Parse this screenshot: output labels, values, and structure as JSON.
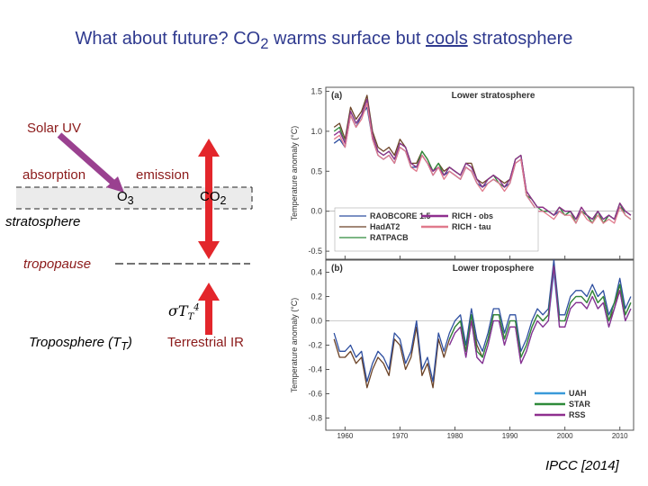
{
  "slide": {
    "title_pre": "What about future? CO",
    "title_sub": "2",
    "title_mid": " warms surface but ",
    "title_underlined": "cools",
    "title_post": " stratosphere",
    "solar_uv": "Solar UV",
    "absorption": "absorption",
    "emission": "emission",
    "o3": "O",
    "o3_sub": "3",
    "co2": "CO",
    "co2_sub": "2",
    "stratosphere": "stratosphere",
    "tropopause": "tropopause",
    "troposphere_pre": "Troposphere (T",
    "troposphere_sub": "T",
    "troposphere_post": ")",
    "sigma": "σ",
    "sigma_T": "T",
    "sigma_sub": "T",
    "sigma_sup": "4",
    "terrestrial_ir": "Terrestrial IR",
    "citation": "IPCC [2014]",
    "colors": {
      "title": "#2f3a8f",
      "label": "#8b1a1a",
      "arrow": "#e3262b",
      "uv_arrow": "#9a4190"
    }
  },
  "chart_data": [
    {
      "type": "line",
      "panel_label": "(a)",
      "title": "Lower stratosphere",
      "ylabel": "Temperature anomaly (°C)",
      "ylim": [
        -0.6,
        1.55
      ],
      "yticks": [
        -0.5,
        0.0,
        0.5,
        1.0,
        1.5
      ],
      "ytick_labels": [
        "-0.5",
        "0.0",
        "0.5",
        "1.0",
        "1.5"
      ],
      "x": [
        1958,
        1959,
        1960,
        1961,
        1962,
        1963,
        1964,
        1965,
        1966,
        1967,
        1968,
        1969,
        1970,
        1971,
        1972,
        1973,
        1974,
        1975,
        1976,
        1977,
        1978,
        1979,
        1980,
        1981,
        1982,
        1983,
        1984,
        1985,
        1986,
        1987,
        1988,
        1989,
        1990,
        1991,
        1992,
        1993,
        1994,
        1995,
        1996,
        1997,
        1998,
        1999,
        2000,
        2001,
        2002,
        2003,
        2004,
        2005,
        2006,
        2007,
        2008,
        2009,
        2010,
        2011,
        2012
      ],
      "legend_placement": "bottom",
      "series": [
        {
          "name": "RAOBCORE 1.5",
          "color": "#2e4fa0",
          "values": [
            0.85,
            0.9,
            0.8,
            1.2,
            1.05,
            1.2,
            1.3,
            0.9,
            0.7,
            0.65,
            0.7,
            0.6,
            0.8,
            0.75,
            0.55,
            0.55,
            0.7,
            0.6,
            0.45,
            0.55,
            0.45,
            0.5,
            0.45,
            0.4,
            0.55,
            0.5,
            0.35,
            0.3,
            0.35,
            0.4,
            0.35,
            0.3,
            0.35,
            0.6,
            0.65,
            0.2,
            0.1,
            0.0,
            0.0,
            0.0,
            -0.05,
            0.0,
            -0.05,
            0.0,
            -0.1,
            0.0,
            -0.05,
            -0.1,
            0.0,
            -0.1,
            -0.05,
            -0.1,
            0.05,
            0.0,
            -0.05
          ]
        },
        {
          "name": "HadAT2",
          "color": "#6b4226",
          "values": [
            1.05,
            1.1,
            0.9,
            1.3,
            1.15,
            1.25,
            1.45,
            1.0,
            0.8,
            0.75,
            0.8,
            0.7,
            0.9,
            0.8,
            0.6,
            0.6,
            0.75,
            0.65,
            0.5,
            0.6,
            0.5,
            0.55,
            0.5,
            0.45,
            0.6,
            0.6,
            0.4,
            0.35,
            0.4,
            0.45,
            0.4,
            0.35,
            0.4,
            0.65,
            0.7,
            0.25,
            0.15,
            0.05,
            0.05,
            0.0,
            -0.05,
            0.05,
            0.0,
            0.0,
            -0.1,
            0.05,
            -0.05,
            -0.1,
            0.0,
            -0.15,
            -0.05,
            -0.1,
            0.1,
            0.0,
            -0.05
          ]
        },
        {
          "name": "RATPACB",
          "color": "#2e8b3a",
          "values": [
            1.0,
            1.05,
            0.85,
            1.25,
            1.1,
            1.2,
            1.4,
            0.95,
            0.75,
            0.7,
            0.75,
            0.65,
            0.85,
            0.8,
            0.6,
            0.55,
            0.75,
            0.65,
            0.5,
            0.6,
            0.45,
            0.55,
            0.5,
            0.45,
            0.6,
            0.55,
            0.4,
            0.3,
            0.4,
            0.45,
            0.35,
            0.3,
            0.4,
            0.65,
            0.7,
            0.2,
            0.15,
            0.05,
            0.0,
            0.0,
            -0.05,
            0.05,
            -0.05,
            0.0,
            -0.15,
            0.0,
            -0.05,
            -0.15,
            0.0,
            -0.15,
            -0.05,
            -0.1,
            0.1,
            -0.05,
            -0.1
          ]
        },
        {
          "name": "RICH - obs",
          "color": "#8e2f8e",
          "values": [
            0.95,
            1.0,
            0.85,
            1.25,
            1.1,
            1.2,
            1.4,
            0.95,
            0.75,
            0.7,
            0.75,
            0.65,
            0.85,
            0.8,
            0.6,
            0.55,
            0.7,
            0.6,
            0.5,
            0.55,
            0.45,
            0.55,
            0.5,
            0.45,
            0.6,
            0.55,
            0.4,
            0.3,
            0.4,
            0.45,
            0.4,
            0.3,
            0.4,
            0.65,
            0.7,
            0.25,
            0.15,
            0.05,
            0.05,
            0.0,
            -0.05,
            0.05,
            0.0,
            0.0,
            -0.1,
            0.05,
            -0.05,
            -0.1,
            0.0,
            -0.1,
            -0.05,
            -0.1,
            0.1,
            0.0,
            -0.05
          ]
        },
        {
          "name": "RICH - tau",
          "color": "#e07a8c",
          "values": [
            0.9,
            0.95,
            0.8,
            1.2,
            1.05,
            1.15,
            1.35,
            0.9,
            0.7,
            0.65,
            0.7,
            0.6,
            0.8,
            0.75,
            0.55,
            0.5,
            0.7,
            0.6,
            0.45,
            0.55,
            0.4,
            0.5,
            0.45,
            0.4,
            0.55,
            0.5,
            0.35,
            0.25,
            0.35,
            0.4,
            0.35,
            0.25,
            0.35,
            0.6,
            0.65,
            0.2,
            0.1,
            0.0,
            0.0,
            -0.05,
            -0.1,
            0.0,
            -0.05,
            -0.05,
            -0.15,
            0.0,
            -0.1,
            -0.15,
            -0.05,
            -0.15,
            -0.1,
            -0.15,
            0.05,
            -0.05,
            -0.1
          ]
        }
      ]
    },
    {
      "type": "line",
      "panel_label": "(b)",
      "title": "Lower troposphere",
      "ylabel": "Temperature anomaly (°C)",
      "xlabel": "",
      "ylim": [
        -0.9,
        0.5
      ],
      "yticks": [
        -0.8,
        -0.6,
        -0.4,
        -0.2,
        0.0,
        0.2,
        0.4
      ],
      "ytick_labels": [
        "-0.8",
        "-0.6",
        "-0.4",
        "-0.2",
        "0.0",
        "0.2",
        "0.4"
      ],
      "xticks": [
        1960,
        1970,
        1980,
        1990,
        2000,
        2010
      ],
      "xtick_labels": [
        "1960",
        "1970",
        "1980",
        "1990",
        "2000",
        "2010"
      ],
      "x": [
        1958,
        1959,
        1960,
        1961,
        1962,
        1963,
        1964,
        1965,
        1966,
        1967,
        1968,
        1969,
        1970,
        1971,
        1972,
        1973,
        1974,
        1975,
        1976,
        1977,
        1978,
        1979,
        1980,
        1981,
        1982,
        1983,
        1984,
        1985,
        1986,
        1987,
        1988,
        1989,
        1990,
        1991,
        1992,
        1993,
        1994,
        1995,
        1996,
        1997,
        1998,
        1999,
        2000,
        2001,
        2002,
        2003,
        2004,
        2005,
        2006,
        2007,
        2008,
        2009,
        2010,
        2011,
        2012
      ],
      "legend_placement": "bottom-right",
      "series": [
        {
          "name": "",
          "color": "#6b4226",
          "values": [
            -0.15,
            -0.3,
            -0.3,
            -0.25,
            -0.35,
            -0.3,
            -0.55,
            -0.4,
            -0.3,
            -0.35,
            -0.45,
            -0.15,
            -0.2,
            -0.4,
            -0.3,
            -0.05,
            -0.45,
            -0.35,
            -0.55,
            -0.15,
            -0.3,
            -0.15,
            -0.05,
            0.0,
            -0.25,
            0.05,
            -0.2,
            -0.3,
            -0.15,
            0.05,
            0.05,
            -0.15,
            0.0,
            0.0,
            -0.3,
            -0.2,
            -0.05,
            0.05,
            0.0,
            0.05,
            0.45,
            0.0,
            0.0,
            0.15,
            0.2,
            0.2,
            0.15,
            0.25,
            0.15,
            0.2,
            0.0,
            0.1,
            0.3,
            0.05,
            0.15
          ]
        },
        {
          "name": "",
          "color": "#2e4fa0",
          "values": [
            -0.1,
            -0.25,
            -0.25,
            -0.2,
            -0.3,
            -0.25,
            -0.5,
            -0.35,
            -0.25,
            -0.3,
            -0.4,
            -0.1,
            -0.15,
            -0.35,
            -0.25,
            0.0,
            -0.4,
            -0.3,
            -0.5,
            -0.1,
            -0.25,
            -0.1,
            0.0,
            0.05,
            -0.2,
            0.1,
            -0.15,
            -0.25,
            -0.1,
            0.1,
            0.1,
            -0.1,
            0.05,
            0.05,
            -0.25,
            -0.15,
            0.0,
            0.1,
            0.05,
            0.1,
            0.5,
            0.05,
            0.05,
            0.2,
            0.25,
            0.25,
            0.2,
            0.3,
            0.2,
            0.25,
            0.05,
            0.15,
            0.35,
            0.1,
            0.2
          ]
        },
        {
          "name": "UAH",
          "color": "#3a9ad9",
          "values": [
            null,
            null,
            null,
            null,
            null,
            null,
            null,
            null,
            null,
            null,
            null,
            null,
            null,
            null,
            null,
            null,
            null,
            null,
            null,
            null,
            null,
            -0.2,
            -0.1,
            -0.05,
            -0.3,
            0.0,
            -0.3,
            -0.35,
            -0.2,
            0.0,
            0.0,
            -0.2,
            -0.05,
            -0.05,
            -0.35,
            -0.25,
            -0.1,
            0.0,
            -0.05,
            0.0,
            0.4,
            -0.05,
            -0.05,
            0.1,
            0.15,
            0.15,
            0.1,
            0.2,
            0.1,
            0.15,
            -0.05,
            0.1,
            0.25,
            0.0,
            0.1
          ]
        },
        {
          "name": "STAR",
          "color": "#2e8b3a",
          "values": [
            null,
            null,
            null,
            null,
            null,
            null,
            null,
            null,
            null,
            null,
            null,
            null,
            null,
            null,
            null,
            null,
            null,
            null,
            null,
            null,
            null,
            -0.15,
            -0.05,
            0.0,
            -0.25,
            0.05,
            -0.25,
            -0.3,
            -0.15,
            0.05,
            0.05,
            -0.15,
            0.0,
            0.0,
            -0.3,
            -0.2,
            -0.05,
            0.05,
            0.0,
            0.05,
            0.45,
            0.0,
            0.0,
            0.15,
            0.2,
            0.2,
            0.15,
            0.25,
            0.15,
            0.2,
            0.0,
            0.15,
            0.3,
            0.05,
            0.15
          ]
        },
        {
          "name": "RSS",
          "color": "#8e2f8e",
          "values": [
            null,
            null,
            null,
            null,
            null,
            null,
            null,
            null,
            null,
            null,
            null,
            null,
            null,
            null,
            null,
            null,
            null,
            null,
            null,
            null,
            null,
            -0.2,
            -0.1,
            -0.05,
            -0.3,
            0.0,
            -0.3,
            -0.35,
            -0.2,
            0.0,
            0.0,
            -0.2,
            -0.05,
            -0.05,
            -0.35,
            -0.25,
            -0.1,
            0.0,
            -0.05,
            0.0,
            0.45,
            -0.05,
            -0.05,
            0.1,
            0.15,
            0.15,
            0.1,
            0.2,
            0.1,
            0.15,
            -0.05,
            0.1,
            0.25,
            0.0,
            0.1
          ]
        }
      ]
    }
  ]
}
